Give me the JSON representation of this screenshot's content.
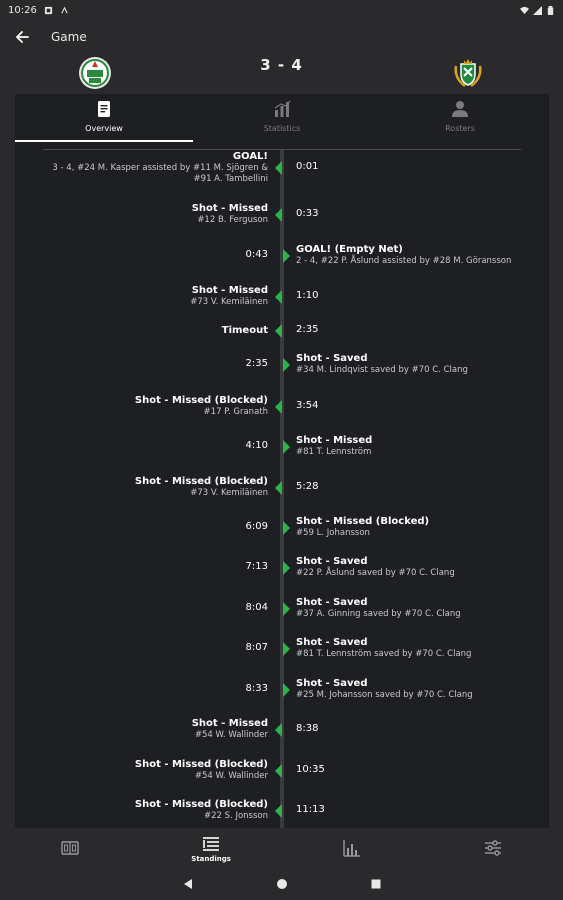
{
  "status_bar": {
    "time": "10:26"
  },
  "app_bar": {
    "title": "Game"
  },
  "score": {
    "text": "3 - 4"
  },
  "tabs": [
    {
      "label": "Overview",
      "icon": "document-icon",
      "active": true
    },
    {
      "label": "Statistics",
      "icon": "bar-chart-icon",
      "active": false
    },
    {
      "label": "Rosters",
      "icon": "person-icon",
      "active": false
    }
  ],
  "events": [
    {
      "side": "left",
      "title": "GOAL!",
      "detail": [
        "3 - 4, #24 M. Kasper assisted by #11 M. Sjögren &",
        "#91 A. Tambellini"
      ],
      "time": "0:01"
    },
    {
      "side": "left",
      "title": "Shot - Missed",
      "detail": [
        "#12 B. Ferguson"
      ],
      "time": "0:33"
    },
    {
      "side": "right",
      "title": "GOAL! (Empty Net)",
      "detail": [
        "2 - 4, #22 P. Åslund assisted by #28 M. Göransson"
      ],
      "time": "0:43"
    },
    {
      "side": "left",
      "title": "Shot - Missed",
      "detail": [
        "#73 V. Kemiläinen"
      ],
      "time": "1:10"
    },
    {
      "side": "left",
      "title": "Timeout",
      "detail": [],
      "time": "2:35"
    },
    {
      "side": "right",
      "title": "Shot - Saved",
      "detail": [
        "#34 M. Lindqvist saved by #70 C. Clang"
      ],
      "time": "2:35"
    },
    {
      "side": "left",
      "title": "Shot - Missed (Blocked)",
      "detail": [
        "#17 P. Granath"
      ],
      "time": "3:54"
    },
    {
      "side": "right",
      "title": "Shot - Missed",
      "detail": [
        "#81 T. Lennström"
      ],
      "time": "4:10"
    },
    {
      "side": "left",
      "title": "Shot - Missed (Blocked)",
      "detail": [
        "#73 V. Kemiläinen"
      ],
      "time": "5:28"
    },
    {
      "side": "right",
      "title": "Shot - Missed (Blocked)",
      "detail": [
        "#59 L. Johansson"
      ],
      "time": "6:09"
    },
    {
      "side": "right",
      "title": "Shot - Saved",
      "detail": [
        "#22 P. Åslund saved by #70 C. Clang"
      ],
      "time": "7:13"
    },
    {
      "side": "right",
      "title": "Shot - Saved",
      "detail": [
        "#37 A. Ginning saved by #70 C. Clang"
      ],
      "time": "8:04"
    },
    {
      "side": "right",
      "title": "Shot - Saved",
      "detail": [
        "#81 T. Lennström saved by #70 C. Clang"
      ],
      "time": "8:07"
    },
    {
      "side": "right",
      "title": "Shot - Saved",
      "detail": [
        "#25 M. Johansson saved by #70 C. Clang"
      ],
      "time": "8:33"
    },
    {
      "side": "left",
      "title": "Shot - Missed",
      "detail": [
        "#54 W. Wallinder"
      ],
      "time": "8:38"
    },
    {
      "side": "left",
      "title": "Shot - Missed (Blocked)",
      "detail": [
        "#54 W. Wallinder"
      ],
      "time": "10:35"
    },
    {
      "side": "left",
      "title": "Shot - Missed (Blocked)",
      "detail": [
        "#22 S. Jonsson"
      ],
      "time": "11:13"
    }
  ],
  "bottom_nav": [
    {
      "label": "",
      "icon": "scoreboard-icon"
    },
    {
      "label": "Standings",
      "icon": "list-icon"
    },
    {
      "label": "",
      "icon": "bar-chart-icon"
    },
    {
      "label": "",
      "icon": "sliders-icon"
    }
  ],
  "colors": {
    "background": "#2a2a2c",
    "card": "#1e1f22",
    "accent_arrow": "#2db34a",
    "text_primary": "#ffffff",
    "text_muted": "#7b7b7e"
  }
}
